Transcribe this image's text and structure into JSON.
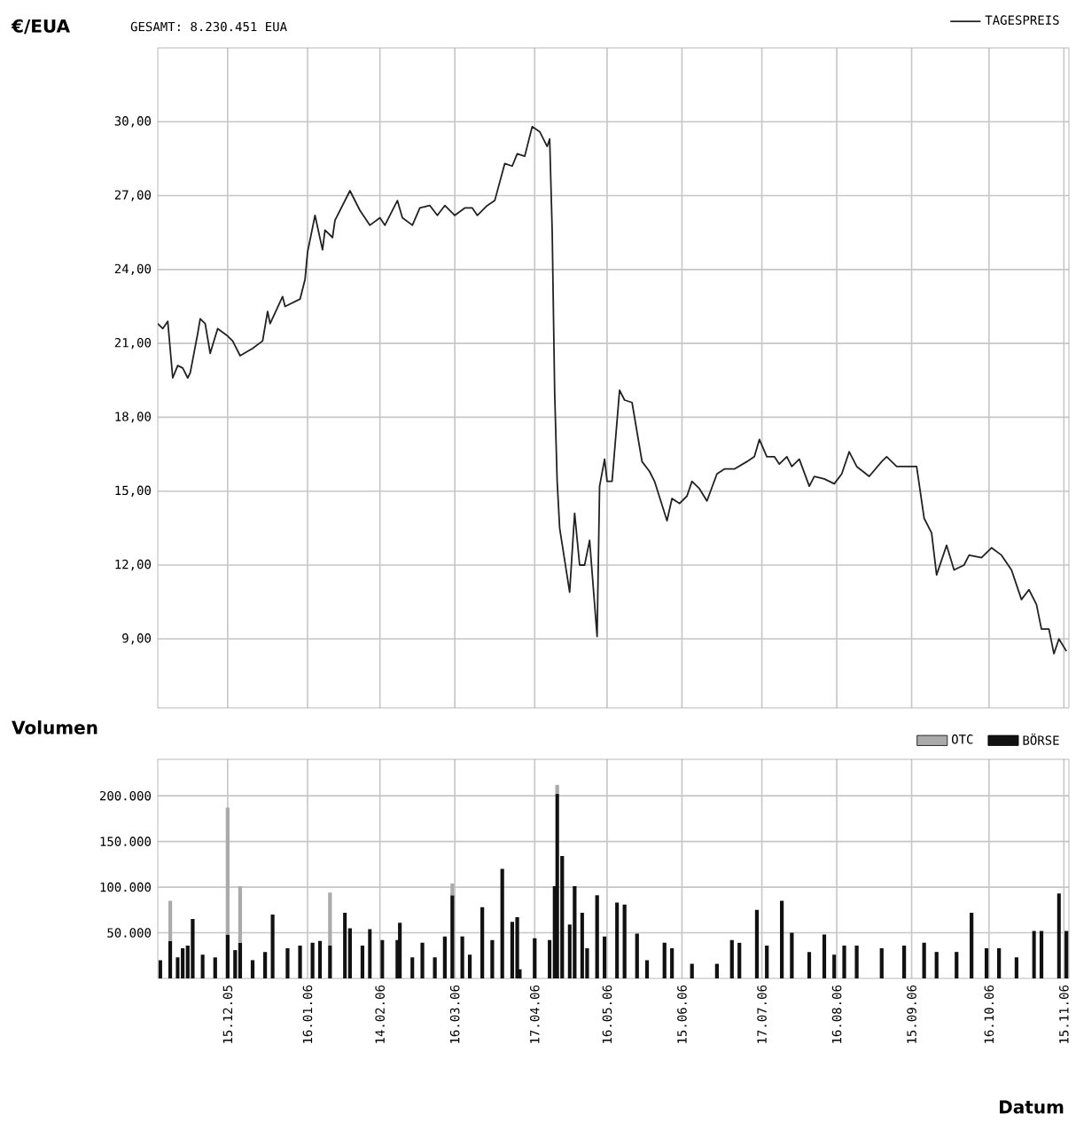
{
  "chart_data": [
    {
      "type": "line",
      "ylabel": "€/EUA",
      "subtitle": "GESAMT:  8.230.451 EUA",
      "legend": "top right",
      "grid": true,
      "tick_labels": "y",
      "xlim": [
        "2005-11-17",
        "2006-11-17"
      ],
      "ylim": [
        6.2,
        33
      ],
      "xticks": [
        {
          "value": "2005-12-15",
          "label": null
        },
        {
          "value": "2006-01-16",
          "label": null
        },
        {
          "value": "2006-02-14",
          "label": null
        },
        {
          "value": "2006-03-16",
          "label": null
        },
        {
          "value": "2006-04-17",
          "label": null
        },
        {
          "value": "2006-05-16",
          "label": null
        },
        {
          "value": "2006-06-15",
          "label": null
        },
        {
          "value": "2006-07-17",
          "label": null
        },
        {
          "value": "2006-08-16",
          "label": null
        },
        {
          "value": "2006-09-15",
          "label": null
        },
        {
          "value": "2006-10-16",
          "label": null
        },
        {
          "value": "2006-11-15",
          "label": null
        }
      ],
      "yticks": [
        {
          "value": 9,
          "label": "9,00"
        },
        {
          "value": 12,
          "label": "12,00"
        },
        {
          "value": 15,
          "label": "15,00"
        },
        {
          "value": 18,
          "label": "18,00"
        },
        {
          "value": 21,
          "label": "21,00"
        },
        {
          "value": 24,
          "label": "24,00"
        },
        {
          "value": 27,
          "label": "27,00"
        },
        {
          "value": 30,
          "label": "30,00"
        }
      ],
      "series": [
        {
          "name": "TAGESPREIS",
          "color": "#222222",
          "x": [
            "2005-11-17",
            "2005-11-19",
            "2005-11-21",
            "2005-11-23",
            "2005-11-25",
            "2005-11-27",
            "2005-11-29",
            "2005-11-30",
            "2005-12-03",
            "2005-12-04",
            "2005-12-06",
            "2005-12-08",
            "2005-12-11",
            "2005-12-15",
            "2005-12-17",
            "2005-12-20",
            "2005-12-25",
            "2005-12-29",
            "2005-12-31",
            "2006-01-01",
            "2006-01-06",
            "2006-01-07",
            "2006-01-13",
            "2006-01-15",
            "2006-01-16",
            "2006-01-19",
            "2006-01-22",
            "2006-01-23",
            "2006-01-26",
            "2006-01-27",
            "2006-02-02",
            "2006-02-06",
            "2006-02-10",
            "2006-02-14",
            "2006-02-16",
            "2006-02-21",
            "2006-02-23",
            "2006-02-27",
            "2006-03-02",
            "2006-03-06",
            "2006-03-09",
            "2006-03-12",
            "2006-03-16",
            "2006-03-20",
            "2006-03-23",
            "2006-03-25",
            "2006-03-29",
            "2006-04-01",
            "2006-04-05",
            "2006-04-08",
            "2006-04-10",
            "2006-04-13",
            "2006-04-16",
            "2006-04-19",
            "2006-04-22",
            "2006-04-23",
            "2006-04-24",
            "2006-04-25",
            "2006-04-26",
            "2006-04-27",
            "2006-05-01",
            "2006-05-03",
            "2006-05-05",
            "2006-05-07",
            "2006-05-09",
            "2006-05-12",
            "2006-05-13",
            "2006-05-15",
            "2006-05-16",
            "2006-05-18",
            "2006-05-21",
            "2006-05-23",
            "2006-05-26",
            "2006-05-30",
            "2006-06-02",
            "2006-06-04",
            "2006-06-09",
            "2006-06-11",
            "2006-06-14",
            "2006-06-17",
            "2006-06-19",
            "2006-06-22",
            "2006-06-25",
            "2006-06-29",
            "2006-07-02",
            "2006-07-06",
            "2006-07-11",
            "2006-07-14",
            "2006-07-16",
            "2006-07-19",
            "2006-07-22",
            "2006-07-24",
            "2006-07-27",
            "2006-07-29",
            "2006-08-01",
            "2006-08-05",
            "2006-08-07",
            "2006-08-11",
            "2006-08-15",
            "2006-08-18",
            "2006-08-21",
            "2006-08-24",
            "2006-08-29",
            "2006-09-03",
            "2006-09-05",
            "2006-09-09",
            "2006-09-12",
            "2006-09-17",
            "2006-09-20",
            "2006-09-23",
            "2006-09-25",
            "2006-09-29",
            "2006-10-02",
            "2006-10-06",
            "2006-10-08",
            "2006-10-13",
            "2006-10-17",
            "2006-10-21",
            "2006-10-25",
            "2006-10-29",
            "2006-11-01",
            "2006-11-04",
            "2006-11-06",
            "2006-11-09",
            "2006-11-11",
            "2006-11-13",
            "2006-11-16"
          ],
          "values": [
            21.8,
            21.6,
            21.9,
            19.6,
            20.1,
            20.0,
            19.6,
            19.8,
            21.4,
            22.0,
            21.8,
            20.6,
            21.6,
            21.3,
            21.1,
            20.5,
            20.8,
            21.1,
            22.3,
            21.8,
            22.9,
            22.5,
            22.8,
            23.6,
            24.7,
            26.2,
            24.8,
            25.6,
            25.3,
            26.0,
            27.2,
            26.4,
            25.8,
            26.1,
            25.8,
            26.8,
            26.1,
            25.8,
            26.5,
            26.6,
            26.2,
            26.6,
            26.2,
            26.5,
            26.5,
            26.2,
            26.6,
            26.8,
            28.3,
            28.2,
            28.7,
            28.6,
            29.8,
            29.6,
            29.0,
            29.3,
            25.6,
            19.0,
            15.4,
            13.5,
            10.9,
            14.1,
            12.0,
            12.0,
            13.0,
            9.1,
            15.2,
            16.3,
            15.4,
            15.4,
            19.1,
            18.7,
            18.6,
            16.2,
            15.8,
            15.4,
            13.8,
            14.7,
            14.5,
            14.8,
            15.4,
            15.1,
            14.6,
            15.7,
            15.9,
            15.9,
            16.2,
            16.4,
            17.1,
            16.4,
            16.4,
            16.1,
            16.4,
            16.0,
            16.3,
            15.2,
            15.6,
            15.5,
            15.3,
            15.7,
            16.6,
            16.0,
            15.6,
            16.2,
            16.4,
            16.0,
            16.0,
            16.0,
            13.9,
            13.3,
            11.6,
            12.8,
            11.8,
            12.0,
            12.4,
            12.3,
            12.7,
            12.4,
            11.8,
            10.6,
            11.0,
            10.4,
            9.4,
            9.4,
            8.4,
            9.0,
            8.5
          ]
        }
      ]
    },
    {
      "type": "bar",
      "stacked": true,
      "ylabel": "Volumen",
      "xlabel": "Datum",
      "legend": "top right",
      "grid": true,
      "xlim": [
        "2005-11-17",
        "2006-11-17"
      ],
      "ylim": [
        0,
        240000
      ],
      "xticks": [
        {
          "value": "2005-12-15",
          "label": "15.12.05"
        },
        {
          "value": "2006-01-16",
          "label": "16.01.06"
        },
        {
          "value": "2006-02-14",
          "label": "14.02.06"
        },
        {
          "value": "2006-03-16",
          "label": "16.03.06"
        },
        {
          "value": "2006-04-17",
          "label": "17.04.06"
        },
        {
          "value": "2006-05-16",
          "label": "16.05.06"
        },
        {
          "value": "2006-06-15",
          "label": "15.06.06"
        },
        {
          "value": "2006-07-17",
          "label": "17.07.06"
        },
        {
          "value": "2006-08-16",
          "label": "16.08.06"
        },
        {
          "value": "2006-09-15",
          "label": "15.09.06"
        },
        {
          "value": "2006-10-16",
          "label": "16.10.06"
        },
        {
          "value": "2006-11-15",
          "label": "15.11.06"
        }
      ],
      "yticks": [
        {
          "value": 50000,
          "label": "50.000"
        },
        {
          "value": 100000,
          "label": "100.000"
        },
        {
          "value": 150000,
          "label": "150.000"
        },
        {
          "value": 200000,
          "label": "200.000"
        }
      ],
      "x": [
        "2005-11-18",
        "2005-11-22",
        "2005-11-25",
        "2005-11-27",
        "2005-11-29",
        "2005-12-01",
        "2005-12-05",
        "2005-12-10",
        "2005-12-15",
        "2005-12-18",
        "2005-12-20",
        "2005-12-25",
        "2005-12-30",
        "2006-01-02",
        "2006-01-08",
        "2006-01-13",
        "2006-01-18",
        "2006-01-21",
        "2006-01-25",
        "2006-01-31",
        "2006-02-02",
        "2006-02-07",
        "2006-02-10",
        "2006-02-15",
        "2006-02-21",
        "2006-02-22",
        "2006-02-27",
        "2006-03-03",
        "2006-03-08",
        "2006-03-12",
        "2006-03-15",
        "2006-03-19",
        "2006-03-22",
        "2006-03-27",
        "2006-03-31",
        "2006-04-04",
        "2006-04-08",
        "2006-04-10",
        "2006-04-11",
        "2006-04-17",
        "2006-04-23",
        "2006-04-25",
        "2006-04-26",
        "2006-04-28",
        "2006-05-01",
        "2006-05-03",
        "2006-05-06",
        "2006-05-08",
        "2006-05-12",
        "2006-05-15",
        "2006-05-20",
        "2006-05-23",
        "2006-05-28",
        "2006-06-01",
        "2006-06-08",
        "2006-06-11",
        "2006-06-19",
        "2006-06-29",
        "2006-07-05",
        "2006-07-08",
        "2006-07-15",
        "2006-07-19",
        "2006-07-25",
        "2006-07-29",
        "2006-08-05",
        "2006-08-11",
        "2006-08-15",
        "2006-08-19",
        "2006-08-24",
        "2006-09-03",
        "2006-09-12",
        "2006-09-20",
        "2006-09-25",
        "2006-10-03",
        "2006-10-09",
        "2006-10-15",
        "2006-10-20",
        "2006-10-27",
        "2006-11-03",
        "2006-11-06",
        "2006-11-13",
        "2006-11-16"
      ],
      "series": [
        {
          "name": "BÖRSE",
          "color": "#111111",
          "values": [
            20000,
            41000,
            23000,
            33000,
            36000,
            65000,
            26000,
            23000,
            48000,
            31000,
            39000,
            20000,
            29000,
            70000,
            33000,
            36000,
            39000,
            41000,
            36000,
            72000,
            55000,
            36000,
            54000,
            42000,
            42000,
            61000,
            23000,
            39000,
            23000,
            46000,
            91000,
            46000,
            26000,
            78000,
            42000,
            120000,
            62000,
            67000,
            10000,
            44000,
            42000,
            101000,
            202000,
            134000,
            59000,
            101000,
            72000,
            33000,
            91000,
            46000,
            83000,
            81000,
            49000,
            20000,
            39000,
            33000,
            16000,
            16000,
            42000,
            39000,
            75000,
            36000,
            85000,
            50000,
            29000,
            48000,
            26000,
            36000,
            36000,
            33000,
            36000,
            39000,
            29000,
            29000,
            72000,
            33000,
            33000,
            23000,
            52000,
            52000,
            93000,
            52000
          ]
        },
        {
          "name": "OTC",
          "color": "#aaaaaa",
          "values": [
            null,
            44000,
            null,
            null,
            null,
            null,
            null,
            null,
            139000,
            null,
            62000,
            null,
            null,
            null,
            null,
            null,
            null,
            null,
            58000,
            null,
            null,
            null,
            null,
            null,
            null,
            null,
            null,
            null,
            null,
            null,
            13000,
            null,
            null,
            null,
            null,
            null,
            null,
            null,
            null,
            null,
            null,
            null,
            10000,
            null,
            null,
            null,
            null,
            null,
            null,
            null,
            null,
            null,
            null,
            null,
            null,
            null,
            null,
            null,
            null,
            null,
            null,
            null,
            null,
            null,
            null,
            null,
            null,
            null,
            null,
            null,
            null,
            null,
            null,
            null,
            null,
            null,
            null,
            null,
            null,
            null,
            null,
            null
          ]
        }
      ]
    }
  ]
}
